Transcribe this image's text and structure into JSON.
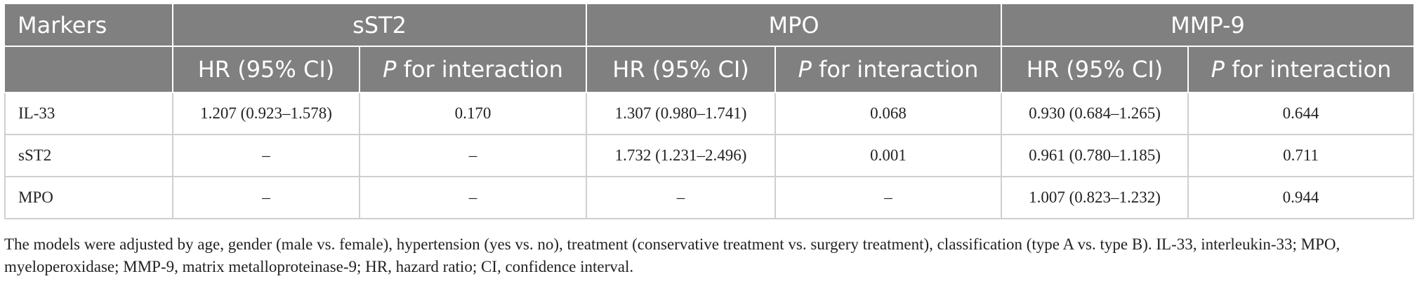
{
  "table": {
    "header": [
      "Markers",
      "sST2",
      "MPO",
      "MMP-9"
    ],
    "subheader": [
      {
        "hr": "HR (95% CI)",
        "p_italic": "P",
        "p_rest": " for interaction"
      },
      {
        "hr": "HR (95% CI)",
        "p_italic": "P",
        "p_rest": " for interaction"
      },
      {
        "hr": "HR (95% CI)",
        "p_italic": "P",
        "p_rest": " for interaction"
      }
    ],
    "rows": [
      [
        "IL-33",
        "1.207 (0.923–1.578)",
        "0.170",
        "1.307 (0.980–1.741)",
        "0.068",
        "0.930 (0.684–1.265)",
        "0.644"
      ],
      [
        "sST2",
        "–",
        "–",
        "1.732 (1.231–2.496)",
        "0.001",
        "0.961 (0.780–1.185)",
        "0.711"
      ],
      [
        "MPO",
        "–",
        "–",
        "–",
        "–",
        "1.007 (0.823–1.232)",
        "0.944"
      ]
    ]
  },
  "footnote": "The models were adjusted by age, gender (male vs. female), hypertension (yes vs. no), treatment (conservative treatment vs. surgery treatment), classification (type A vs. type B). IL-33, interleukin-33; MPO, myeloperoxidase; MMP-9, matrix metalloproteinase-9; HR, hazard ratio; CI, confidence interval."
}
